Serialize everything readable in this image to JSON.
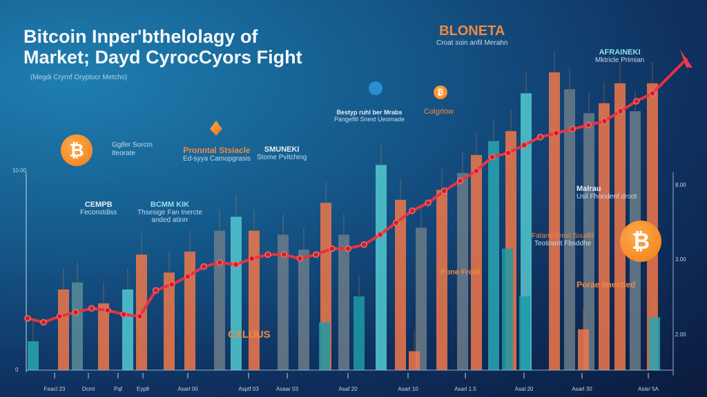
{
  "title_line1": "Bitcoin Inper'bthelolagy of",
  "title_line2": "Market; Dayd CyrocCyors Fight",
  "subtitle": "(Megdi Cryrnf Oryptocr Metchs)",
  "annotations": [
    {
      "head": "BLONETA",
      "body": "Croat soin anfil Merahn"
    },
    {
      "head": "AFRAINEKI",
      "body": "Mktricle Primian"
    },
    {
      "head": "Pronntal Stsiacle",
      "body": "Ed-syya Camopgrasis"
    },
    {
      "head": "SMUNEKI",
      "body": "Stome Pvitching"
    },
    {
      "head": "Bestyp ruhl ber Mrabs",
      "body": "Pangefitl Snest Ueomade"
    },
    {
      "head": "Colgrlow",
      "body": ""
    },
    {
      "head": "",
      "body": "Ggifer Sorcm Iteorate"
    },
    {
      "head": "CEMPB",
      "body": "Feconstdiss"
    },
    {
      "head": "BCMM KIK",
      "body": "Thsesige Fan Inercte anded atinrr"
    },
    {
      "head": "Malrau",
      "body": "Usil Fhondenf droot"
    },
    {
      "head": "Fatane Frest Soudlit",
      "body": "Teotinerit Fbsddhe"
    },
    {
      "head": "Pone Froitl",
      "body": ""
    },
    {
      "head": "Porae Imectied",
      "body": ""
    },
    {
      "head": "CXLUUS",
      "body": ""
    }
  ],
  "coin_symbol": "₿",
  "chart_data": {
    "type": "bar",
    "title": "Bitcoin Inper'bthelolagy of Market; Dayd CyrocCyors Fight",
    "ylim": [
      0,
      10
    ],
    "y_left_ticks": [
      "10.00",
      "0"
    ],
    "y_right_ticks": [
      "8.00",
      "3.00",
      "2.00"
    ],
    "x_tick_labels": [
      "Feacl 23",
      "Dcml",
      "Pqf",
      "Eyp8",
      "Asarl 00",
      "Asptf 03",
      "Asaar 03",
      "Asaf 20",
      "Asarl 10",
      "Asarl 1.5",
      "Asal 20",
      "Asarl 30",
      "Asie/ 5A"
    ],
    "grid": false,
    "bars": [
      {
        "value": 1.45,
        "color": "#2aa6b0"
      },
      {
        "value": 4.05,
        "color": "#f0784a"
      },
      {
        "value": 4.4,
        "color": "#5d8d96"
      },
      {
        "value": 3.35,
        "color": "#f0784a"
      },
      {
        "value": 4.05,
        "color": "#52c9cf"
      },
      {
        "value": 5.8,
        "color": "#f0784a"
      },
      {
        "value": 4.9,
        "color": "#f0784a"
      },
      {
        "value": 5.95,
        "color": "#f0784a"
      },
      {
        "value": 7.0,
        "color": "#6b7d88"
      },
      {
        "value": 7.7,
        "color": "#52c9cf"
      },
      {
        "value": 7.0,
        "color": "#f0784a"
      },
      {
        "value": 6.8,
        "color": "#6b7d88"
      },
      {
        "value": 6.05,
        "color": "#6b7d88"
      },
      {
        "value": 8.4,
        "color": "#f0784a"
      },
      {
        "value": 6.8,
        "color": "#6b7d88"
      },
      {
        "value": 3.7,
        "color": "#1f9aa5"
      },
      {
        "value": 10.3,
        "color": "#52c9cf"
      },
      {
        "value": 8.55,
        "color": "#f0784a"
      },
      {
        "value": 7.15,
        "color": "#6b7d88"
      },
      {
        "value": 9.05,
        "color": "#f0784a"
      },
      {
        "value": 9.9,
        "color": "#6b7d88"
      },
      {
        "value": 10.8,
        "color": "#f0784a"
      },
      {
        "value": 11.5,
        "color": "#2aa6b0"
      },
      {
        "value": 12.0,
        "color": "#f0784a"
      },
      {
        "value": 13.9,
        "color": "#52c9cf"
      },
      {
        "value": 14.95,
        "color": "#f0784a"
      },
      {
        "value": 14.1,
        "color": "#6b7d88"
      },
      {
        "value": 12.9,
        "color": "#6b7d88"
      },
      {
        "value": 13.4,
        "color": "#f0784a"
      },
      {
        "value": 14.4,
        "color": "#f0784a"
      },
      {
        "value": 13.0,
        "color": "#6b7d88"
      },
      {
        "value": 14.4,
        "color": "#f0784a"
      },
      {
        "value": 6.1,
        "color": "#1f9aa5"
      },
      {
        "value": 3.7,
        "color": "#1f9aa5"
      },
      {
        "value": 2.05,
        "color": "#f0784a"
      },
      {
        "value": 2.65,
        "color": "#2aa6b0"
      },
      {
        "value": 0.95,
        "color": "#f0784a"
      },
      {
        "value": 2.4,
        "color": "#1f9aa5"
      }
    ],
    "line": {
      "color": "#e8333f",
      "values": [
        2.6,
        2.4,
        2.7,
        2.9,
        3.1,
        3.0,
        2.8,
        2.7,
        4.0,
        4.3,
        4.7,
        5.2,
        5.4,
        5.3,
        5.6,
        5.8,
        5.8,
        5.6,
        5.8,
        6.1,
        6.1,
        6.3,
        6.8,
        7.4,
        8.0,
        8.4,
        9.0,
        9.5,
        10.0,
        10.7,
        10.9,
        11.3,
        11.7,
        11.9,
        12.1,
        12.3,
        12.5,
        13.0,
        13.5,
        13.9
      ]
    }
  }
}
